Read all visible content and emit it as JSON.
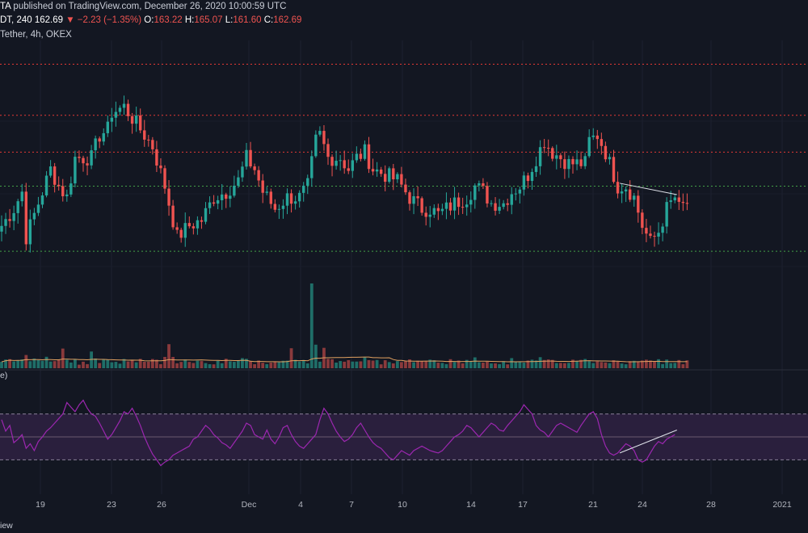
{
  "header": {
    "line1_prefix": "TA",
    "published": "published on TradingView.com, December 26, 2020 10:00:59 UTC",
    "line2_symbol": "DT, 240",
    "last": "162.69",
    "change": "▼ −2.23 (−1.35%)",
    "o_label": "O:",
    "o": "163.22",
    "h_label": "H:",
    "h": "165.07",
    "l_label": "L:",
    "l": "161.60",
    "c_label": "C:",
    "c": "162.69",
    "line3": "Tether, 4h, OKEX"
  },
  "rsi_label": "e)",
  "footer": "iew",
  "colors": {
    "background": "#131722",
    "up": "#26a69a",
    "down": "#ef5350",
    "vol_up": "#1f6e68",
    "vol_down": "#8a3a3c",
    "resistance": "#e53935",
    "support": "#43a047",
    "rsi": "#9c27b0",
    "rsi_band": "#2a1f3d",
    "ma": "#e0a060",
    "trendline": "#e0e3eb"
  },
  "chart_data": [
    {
      "type": "candlestick",
      "title": "Tether, 4h, OKEX",
      "x_ticks": [
        "19",
        "23",
        "26",
        "Dec",
        "4",
        "7",
        "10",
        "14",
        "17",
        "21",
        "24",
        "28",
        "2021"
      ],
      "y_range": [
        115,
        172
      ],
      "ohlc_last": {
        "open": 163.22,
        "high": 165.07,
        "low": 161.6,
        "close": 162.69
      },
      "resistance_levels": [
        168.5,
        159.5,
        153.0
      ],
      "support_levels": [
        147.0,
        135.5
      ],
      "anchors": [
        [
          0,
          140
        ],
        [
          3,
          143
        ],
        [
          5,
          146
        ],
        [
          6,
          138
        ],
        [
          9,
          144
        ],
        [
          12,
          150
        ],
        [
          14,
          147
        ],
        [
          16,
          145
        ],
        [
          18,
          152
        ],
        [
          20,
          152
        ],
        [
          22,
          152
        ],
        [
          24,
          156
        ],
        [
          26,
          157
        ],
        [
          27,
          160
        ],
        [
          30,
          161
        ],
        [
          34,
          157
        ],
        [
          37,
          154
        ],
        [
          40,
          147
        ],
        [
          43,
          138
        ],
        [
          46,
          140
        ],
        [
          49,
          141
        ],
        [
          52,
          145
        ],
        [
          55,
          146
        ],
        [
          58,
          148
        ],
        [
          60,
          152
        ],
        [
          62,
          150
        ],
        [
          64,
          146
        ],
        [
          67,
          143
        ],
        [
          70,
          145
        ],
        [
          73,
          145
        ],
        [
          75,
          147
        ],
        [
          77,
          155
        ],
        [
          78,
          156
        ],
        [
          80,
          152
        ],
        [
          83,
          152
        ],
        [
          85,
          150
        ],
        [
          87,
          152
        ],
        [
          89,
          153
        ],
        [
          91,
          150
        ],
        [
          94,
          149
        ],
        [
          97,
          148
        ],
        [
          100,
          145
        ],
        [
          103,
          143
        ],
        [
          105,
          143
        ],
        [
          107,
          142
        ],
        [
          109,
          143
        ],
        [
          111,
          144
        ],
        [
          114,
          145
        ],
        [
          116,
          147
        ],
        [
          118,
          146
        ],
        [
          120,
          144
        ],
        [
          123,
          144
        ],
        [
          125,
          146
        ],
        [
          127,
          147
        ],
        [
          129,
          149
        ],
        [
          131,
          152
        ],
        [
          133,
          155
        ],
        [
          135,
          153
        ],
        [
          137,
          152
        ],
        [
          139,
          151
        ],
        [
          141,
          151
        ],
        [
          143,
          151
        ],
        [
          144,
          155
        ],
        [
          146,
          156
        ],
        [
          148,
          153
        ],
        [
          151,
          147
        ],
        [
          153,
          147
        ],
        [
          155,
          145
        ],
        [
          157,
          140
        ],
        [
          159,
          137
        ],
        [
          161,
          139
        ],
        [
          163,
          143
        ],
        [
          165,
          145
        ],
        [
          166,
          143
        ],
        [
          168,
          144
        ]
      ],
      "volume": {
        "ma_period": "20",
        "spike_indices": [
          15,
          22,
          41,
          71,
          76,
          77,
          79
        ]
      },
      "trendline_price": {
        "from": [
          151.5,
          147.5
        ],
        "to": [
          165.5,
          145.5
        ]
      }
    },
    {
      "type": "line",
      "title": "RSI",
      "y_range": [
        0,
        100
      ],
      "levels": [
        70,
        50,
        30
      ],
      "values": [
        65,
        55,
        60,
        45,
        48,
        52,
        40,
        44,
        38,
        46,
        50,
        55,
        58,
        62,
        66,
        70,
        80,
        76,
        72,
        78,
        82,
        75,
        70,
        68,
        62,
        55,
        48,
        52,
        58,
        64,
        72,
        70,
        75,
        68,
        60,
        50,
        42,
        35,
        30,
        25,
        28,
        30,
        34,
        36,
        38,
        40,
        42,
        48,
        50,
        55,
        60,
        57,
        52,
        49,
        45,
        43,
        40,
        45,
        50,
        55,
        62,
        60,
        52,
        50,
        48,
        56,
        48,
        44,
        50,
        58,
        60,
        52,
        46,
        42,
        40,
        44,
        48,
        52,
        65,
        75,
        70,
        62,
        55,
        50,
        46,
        48,
        52,
        58,
        62,
        56,
        50,
        45,
        42,
        40,
        36,
        32,
        30,
        34,
        38,
        36,
        34,
        38,
        40,
        42,
        40,
        38,
        37,
        36,
        38,
        42,
        46,
        50,
        52,
        55,
        60,
        58,
        54,
        50,
        54,
        58,
        62,
        60,
        56,
        55,
        60,
        64,
        68,
        72,
        78,
        74,
        70,
        60,
        56,
        54,
        50,
        55,
        60,
        62,
        60,
        58,
        56,
        54,
        60,
        65,
        70,
        72,
        66,
        52,
        42,
        36,
        34,
        36,
        40,
        44,
        42,
        38,
        30,
        28,
        30,
        36,
        42,
        46,
        44,
        48,
        50,
        52
      ],
      "trendline": {
        "from": [
          151.5,
          36
        ],
        "to": [
          165.5,
          56
        ]
      }
    }
  ]
}
